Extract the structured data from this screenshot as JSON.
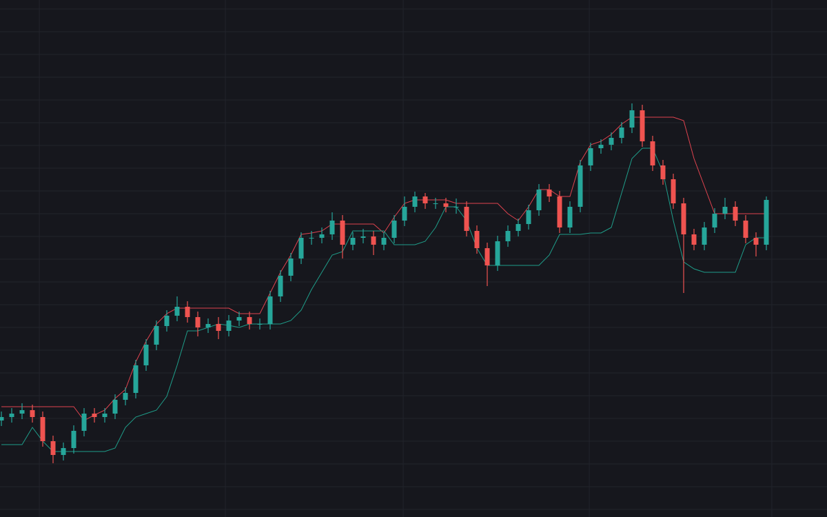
{
  "chart_data": {
    "type": "candlestick",
    "background": "#16171d",
    "grid_color": "#22242c",
    "up_color": "#26a69a",
    "down_color": "#ef5350",
    "xlim": [
      0,
      80
    ],
    "ylim": [
      0,
      750
    ],
    "xticks": [
      3.67,
      21.67,
      38.87,
      56.87,
      74.53
    ],
    "yticks": [
      11,
      44,
      77,
      110,
      143,
      176,
      209,
      242,
      275,
      308,
      341,
      374,
      407,
      440,
      473,
      506,
      539,
      572,
      605,
      638,
      671,
      704,
      737
    ],
    "grid": true,
    "x": [
      0,
      1,
      2,
      3,
      4,
      5,
      6,
      7,
      8,
      9,
      10,
      11,
      12,
      13,
      14,
      15,
      16,
      17,
      18,
      19,
      20,
      21,
      22,
      23,
      24,
      25,
      26,
      27,
      28,
      29,
      30,
      31,
      32,
      33,
      34,
      35,
      36,
      37,
      38,
      39,
      40,
      41,
      42,
      43,
      44,
      45,
      46,
      47,
      48,
      49,
      50,
      51,
      52,
      53,
      54,
      55,
      56,
      57,
      58,
      59,
      60,
      61,
      62,
      63,
      64,
      65,
      66,
      67,
      68,
      69,
      70,
      71,
      72,
      73,
      74
    ],
    "open": [
      140,
      145,
      150,
      155,
      145,
      110,
      90,
      100,
      125,
      150,
      145,
      150,
      170,
      180,
      220,
      250,
      277,
      292,
      305,
      290,
      275,
      280,
      270,
      285,
      290,
      280,
      280,
      320,
      350,
      375,
      405,
      405,
      410,
      430,
      395,
      405,
      407,
      395,
      405,
      430,
      450,
      465,
      455,
      455,
      450,
      450,
      415,
      390,
      365,
      400,
      415,
      425,
      445,
      475,
      465,
      420,
      450,
      510,
      535,
      540,
      550,
      565,
      590,
      545,
      510,
      490,
      455,
      410,
      395,
      420,
      440,
      450,
      430,
      405,
      395
    ],
    "high": [
      153,
      158,
      165,
      163,
      153,
      118,
      108,
      133,
      158,
      158,
      158,
      178,
      188,
      228,
      258,
      285,
      300,
      320,
      313,
      298,
      288,
      290,
      293,
      298,
      298,
      288,
      328,
      358,
      383,
      413,
      415,
      420,
      442,
      438,
      413,
      418,
      415,
      413,
      438,
      465,
      472,
      470,
      463,
      463,
      462,
      458,
      423,
      398,
      408,
      423,
      433,
      453,
      483,
      483,
      473,
      458,
      518,
      543,
      548,
      558,
      573,
      600,
      598,
      553,
      518,
      498,
      463,
      418,
      428,
      448,
      463,
      458,
      438,
      413,
      465
    ],
    "low": [
      132,
      137,
      142,
      137,
      102,
      78,
      82,
      92,
      117,
      137,
      137,
      142,
      162,
      172,
      212,
      242,
      269,
      284,
      282,
      262,
      267,
      258,
      262,
      277,
      272,
      272,
      272,
      312,
      342,
      367,
      395,
      397,
      402,
      375,
      387,
      397,
      380,
      387,
      397,
      422,
      442,
      447,
      447,
      442,
      440,
      407,
      382,
      335,
      357,
      392,
      407,
      417,
      437,
      457,
      412,
      412,
      442,
      502,
      527,
      532,
      542,
      557,
      537,
      502,
      482,
      447,
      325,
      387,
      387,
      412,
      432,
      422,
      397,
      378,
      387
    ],
    "close": [
      145,
      150,
      155,
      145,
      110,
      90,
      100,
      125,
      150,
      145,
      150,
      170,
      180,
      220,
      250,
      277,
      292,
      305,
      290,
      275,
      280,
      270,
      285,
      290,
      280,
      280,
      320,
      350,
      375,
      405,
      405,
      410,
      430,
      395,
      405,
      407,
      395,
      405,
      430,
      450,
      465,
      455,
      455,
      450,
      450,
      415,
      390,
      365,
      400,
      415,
      425,
      445,
      475,
      465,
      420,
      450,
      510,
      535,
      540,
      550,
      565,
      590,
      545,
      510,
      490,
      455,
      410,
      395,
      420,
      440,
      450,
      430,
      405,
      395,
      460
    ],
    "series": [
      {
        "color": "#e0434f",
        "values": [
          160,
          160,
          160,
          160,
          160,
          160,
          160,
          160,
          140,
          148,
          155,
          172,
          185,
          225,
          255,
          280,
          295,
          303,
          303,
          303,
          303,
          303,
          303,
          295,
          295,
          295,
          325,
          355,
          380,
          410,
          412,
          415,
          425,
          425,
          425,
          425,
          425,
          412,
          435,
          455,
          460,
          460,
          460,
          460,
          455,
          455,
          455,
          455,
          455,
          440,
          430,
          450,
          475,
          475,
          465,
          465,
          515,
          540,
          545,
          555,
          570,
          580,
          580,
          580,
          580,
          580,
          575,
          520,
          480,
          440,
          440,
          440,
          440,
          440,
          440
        ]
      },
      {
        "color": "#1f9e8a",
        "values": [
          105,
          105,
          105,
          130,
          110,
          95,
          95,
          95,
          95,
          95,
          95,
          100,
          130,
          145,
          150,
          155,
          175,
          220,
          270,
          270,
          275,
          280,
          278,
          275,
          280,
          280,
          280,
          280,
          285,
          300,
          330,
          355,
          380,
          385,
          415,
          415,
          415,
          415,
          395,
          395,
          395,
          400,
          420,
          450,
          450,
          430,
          390,
          365,
          365,
          365,
          365,
          365,
          365,
          380,
          410,
          410,
          410,
          412,
          412,
          420,
          470,
          520,
          535,
          535,
          500,
          430,
          370,
          360,
          355,
          355,
          355,
          355,
          395,
          405,
          405
        ]
      }
    ]
  }
}
